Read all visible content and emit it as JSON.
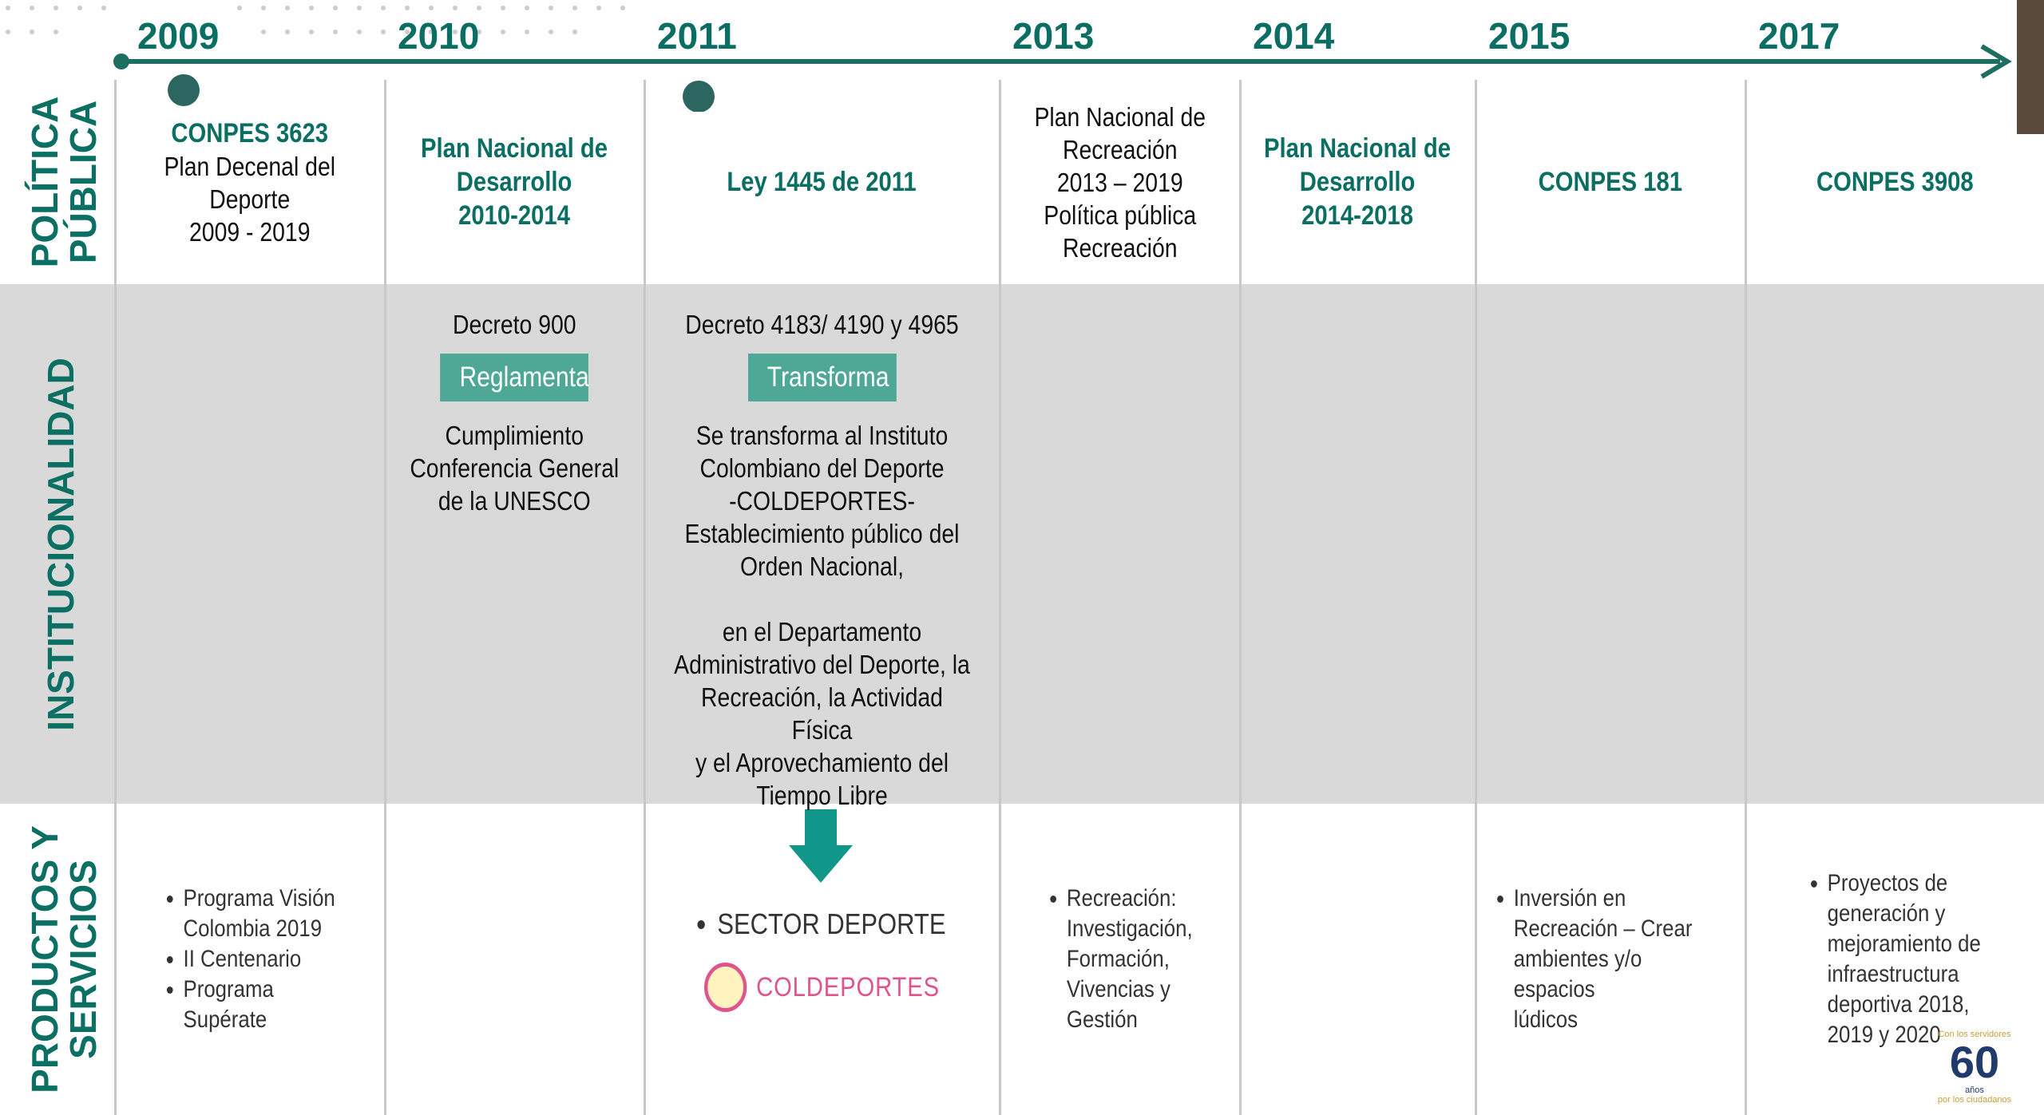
{
  "years": [
    "2009",
    "2010",
    "2011",
    "2013",
    "2014",
    "2015",
    "2017"
  ],
  "rows": [
    {
      "label": [
        "POLÍTICA",
        "PÚBLICA"
      ],
      "cells": [
        [
          {
            "style": "bold",
            "text": "CONPES 3623"
          },
          {
            "style": "plain",
            "text": "Plan Decenal del\nDeporte\n2009 - 2019"
          }
        ],
        [
          {
            "style": "bold",
            "text": "Plan Nacional de\nDesarrollo\n2010-2014"
          }
        ],
        [
          {
            "style": "bold",
            "text": "Ley 1445 de 2011"
          }
        ],
        [
          {
            "style": "plain",
            "text": "Plan Nacional de\nRecreación\n2013 – 2019\nPolítica pública\nRecreación"
          }
        ],
        [
          {
            "style": "bold",
            "text": "Plan Nacional de\nDesarrollo\n2014-2018"
          }
        ],
        [
          {
            "style": "bold",
            "text": "CONPES 181"
          }
        ],
        [
          {
            "style": "bold",
            "text": "CONPES 3908"
          }
        ]
      ]
    },
    {
      "label": [
        "INSTITUCIONALIDAD"
      ],
      "cells": [
        [],
        [
          {
            "style": "plain",
            "text": "Decreto 900"
          },
          {
            "style": "badge",
            "text": "Reglamenta"
          },
          {
            "style": "plain",
            "text": "Cumplimiento\nConferencia General\nde la UNESCO"
          }
        ],
        [
          {
            "style": "plain",
            "text": "Decreto 4183/ 4190 y 4965"
          },
          {
            "style": "badge",
            "text": "Transforma"
          },
          {
            "style": "plain",
            "text": "Se transforma al Instituto\nColombiano del Deporte\n-COLDEPORTES-\nEstablecimiento público del\nOrden Nacional,\n\nen el Departamento\nAdministrativo del Deporte, la\nRecreación, la Actividad Física\ny el Aprovechamiento del\nTiempo Libre"
          }
        ],
        [],
        [],
        [],
        []
      ]
    },
    {
      "label": [
        "PRODUCTOS Y",
        "SERVICIOS"
      ],
      "cells": [
        [
          {
            "style": "bullets",
            "items": [
              "Programa Visión\nColombia 2019",
              "II Centenario",
              "Programa\nSupérate"
            ]
          }
        ],
        [],
        [
          {
            "style": "bullets-large",
            "items": [
              "SECTOR DEPORTE"
            ]
          },
          {
            "style": "logo",
            "text": "COLDEPORTES"
          }
        ],
        [
          {
            "style": "bullets",
            "items": [
              "Recreación:\nInvestigación,\nFormación,\nVivencias y\nGestión"
            ]
          }
        ],
        [],
        [
          {
            "style": "bullets",
            "items": [
              "Inversión en\nRecreación – Crear\nambientes y/o espacios\nlúdicos"
            ]
          }
        ],
        [
          {
            "style": "bullets",
            "items": [
              "Proyectos de\ngeneración y\nmejoramiento de\ninfraestructura\ndeportiva 2018,\n2019 y 2020"
            ]
          }
        ]
      ]
    }
  ],
  "badge": {
    "top": "Con los servidores",
    "number": "60",
    "sub": "años",
    "bottom": "por los ciudadanos"
  }
}
